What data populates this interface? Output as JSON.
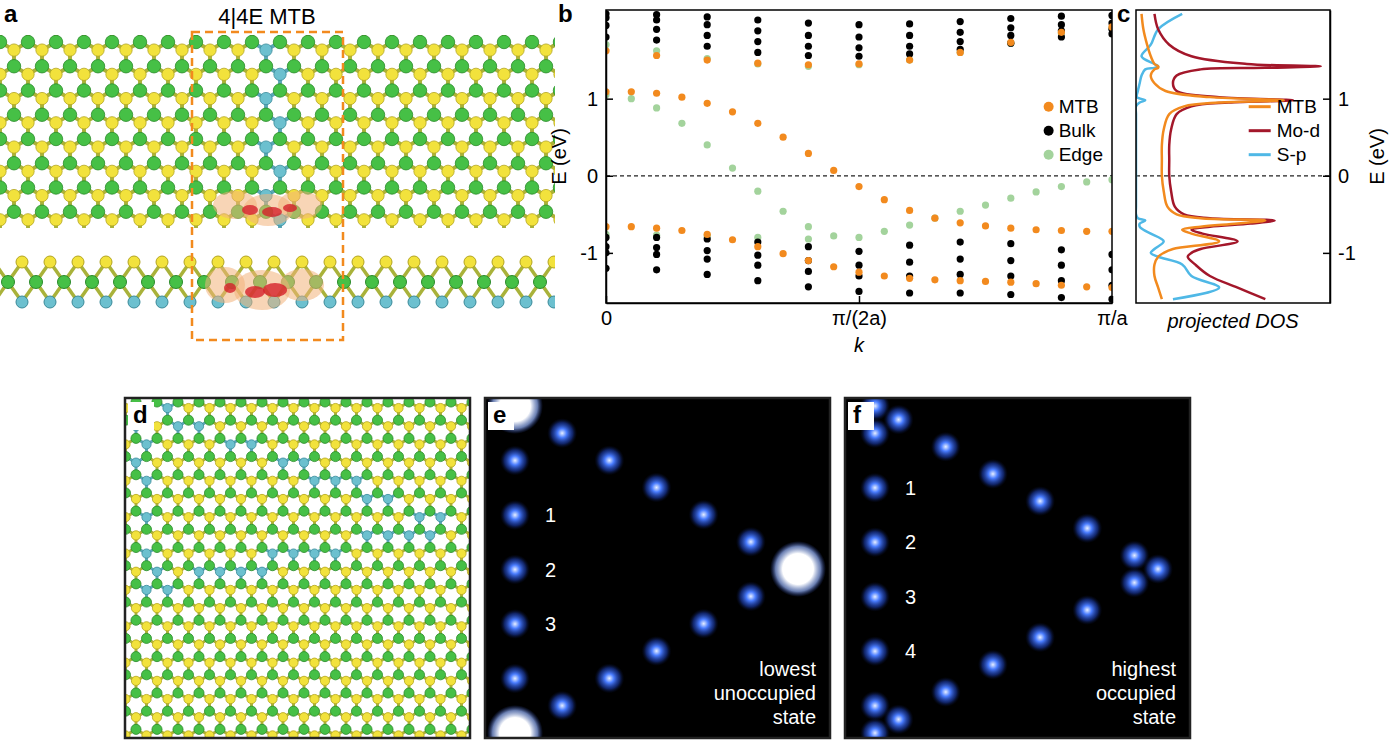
{
  "figure": {
    "panel_labels": [
      "a",
      "b",
      "c",
      "d",
      "e",
      "f"
    ],
    "a_title": "4|4E MTB",
    "e_sites": [
      "1",
      "2",
      "3"
    ],
    "e_caption": "lowest unoccupied state",
    "f_sites": [
      "1",
      "2",
      "3",
      "4"
    ],
    "f_caption": "highest occupied state"
  },
  "chart_data": [
    {
      "type": "scatter",
      "xlabel": "k",
      "ylabel": "E (eV)",
      "xlim": [
        0,
        1
      ],
      "xticks": [
        0,
        {
          "value": 0.5,
          "label": "π/(2a)"
        },
        {
          "value": 1,
          "label": "π/a"
        }
      ],
      "ylim": [
        -1.65,
        2.15
      ],
      "yticks": [
        -1,
        0,
        1
      ],
      "fermi_level": 0,
      "legend": "right",
      "series": [
        {
          "name": "MTB",
          "color": "#f28a1e",
          "marker": "circle",
          "x": [
            0,
            0.05,
            0.1,
            0.15,
            0.2,
            0.25,
            0.3,
            0.35,
            0.4,
            0.45,
            0.5,
            0.55,
            0.6,
            0.65,
            0.7,
            0.75,
            0.8,
            0.85,
            0.9,
            0.95,
            1,
            0,
            0.05,
            0.1,
            0.15,
            0.2,
            0.25,
            0.3,
            0.35,
            0.4,
            0.45,
            0.5,
            0.55,
            0.6,
            0.65,
            0.7,
            0.75,
            0.8,
            0.85,
            0.9,
            0.95,
            1,
            0,
            0.1,
            0.2,
            0.3,
            0.4,
            0.5,
            0.6,
            0.7,
            0.8,
            0.9,
            1
          ],
          "values": [
            1.09,
            1.09,
            1.07,
            1.02,
            0.94,
            0.83,
            0.68,
            0.5,
            0.29,
            0.07,
            -0.14,
            -0.31,
            -0.45,
            -0.55,
            -0.61,
            -0.65,
            -0.68,
            -0.7,
            -0.71,
            -0.72,
            -0.72,
            -0.66,
            -0.66,
            -0.68,
            -0.71,
            -0.76,
            -0.83,
            -0.92,
            -1.01,
            -1.1,
            -1.18,
            -1.25,
            -1.3,
            -1.33,
            -1.35,
            -1.36,
            -1.37,
            -1.38,
            -1.4,
            -1.42,
            -1.44,
            -1.45,
            1.62,
            1.56,
            1.5,
            1.46,
            1.44,
            1.45,
            1.5,
            1.6,
            1.73,
            1.86,
            1.93
          ]
        },
        {
          "name": "Bulk",
          "color": "#000000",
          "marker": "circle",
          "x": [
            0,
            0.1,
            0.2,
            0.3,
            0.4,
            0.5,
            0.6,
            0.7,
            0.8,
            0.9,
            1,
            0,
            0.1,
            0.2,
            0.3,
            0.4,
            0.5,
            0.6,
            0.7,
            0.8,
            0.9,
            1,
            0,
            0.1,
            0.2,
            0.3,
            0.4,
            0.5,
            0.6,
            0.7,
            0.8,
            0.9,
            1,
            0,
            0.1,
            0.2,
            0.3,
            0.4,
            0.5,
            0.6,
            0.7,
            0.8,
            0.9,
            1,
            0,
            0.1,
            0.2,
            0.3,
            0.4,
            0.5,
            0.6,
            0.7,
            0.8,
            0.9,
            1,
            0,
            0.1,
            0.2,
            0.3,
            0.4,
            0.5,
            0.6,
            0.7,
            0.8,
            0.9,
            1,
            0,
            0.1,
            0.2,
            0.3,
            0.4,
            0.5,
            0.6,
            0.7,
            0.8,
            0.9,
            1,
            0,
            0.1,
            0.2,
            0.3,
            0.4,
            0.5,
            0.6,
            0.7,
            0.8,
            0.9,
            1
          ],
          "values": [
            1.95,
            1.9,
            1.82,
            1.74,
            1.68,
            1.66,
            1.68,
            1.74,
            1.82,
            1.88,
            1.9,
            2.05,
            2.02,
            1.96,
            1.88,
            1.82,
            1.8,
            1.82,
            1.86,
            1.92,
            1.96,
            1.98,
            2.1,
            2.09,
            2.06,
            2.02,
            1.98,
            1.96,
            1.97,
            2,
            2.04,
            2.07,
            2.08,
            1.8,
            1.76,
            1.68,
            1.6,
            1.56,
            1.55,
            1.58,
            1.64,
            1.72,
            1.8,
            1.84,
            -0.8,
            -0.8,
            -0.82,
            -0.86,
            -0.92,
            -0.98,
            -0.9,
            -0.86,
            -0.88,
            -0.96,
            -1.02,
            -0.92,
            -0.93,
            -0.97,
            -1.03,
            -1.1,
            -1.16,
            -1.12,
            -1.08,
            -1.1,
            -1.16,
            -1.22,
            -1,
            -1.02,
            -1.08,
            -1.16,
            -1.24,
            -1.3,
            -1.3,
            -1.28,
            -1.3,
            -1.36,
            -1.42,
            -1.2,
            -1.22,
            -1.28,
            -1.36,
            -1.44,
            -1.5,
            -1.52,
            -1.52,
            -1.54,
            -1.58,
            -1.6
          ]
        },
        {
          "name": "Edge",
          "color": "#a3d39c",
          "marker": "circle",
          "x": [
            0,
            0.05,
            0.1,
            0.15,
            0.2,
            0.25,
            0.3,
            0.35,
            0.4,
            0.45,
            0,
            0.1,
            0.2,
            0.3,
            0.4,
            0.5,
            0.55,
            0.6,
            0.65,
            0.7,
            0.75,
            0.8,
            0.85,
            0.9,
            0.95,
            1,
            0,
            0.1,
            0.2,
            0.3,
            0.4,
            0.5,
            0.6,
            0.7,
            0.8,
            0.9,
            1
          ],
          "values": [
            1.05,
            1,
            0.88,
            0.68,
            0.4,
            0.1,
            -0.2,
            -0.46,
            -0.66,
            -0.78,
            -0.76,
            -0.77,
            -0.78,
            -0.8,
            -0.82,
            -0.8,
            -0.72,
            -0.64,
            -0.55,
            -0.46,
            -0.38,
            -0.29,
            -0.21,
            -0.14,
            -0.08,
            -0.05,
            1.7,
            1.62,
            1.52,
            1.45,
            1.42,
            1.44,
            1.5,
            1.6,
            1.72,
            1.85,
            1.92
          ]
        }
      ]
    },
    {
      "type": "line",
      "xlabel": "projected DOS",
      "ylabel": "E (eV)",
      "xlim": [
        0,
        1.05
      ],
      "ylim": [
        -1.65,
        2.15
      ],
      "yticks": [
        -1,
        0,
        1
      ],
      "tick_labels": "y",
      "fermi_level": 0,
      "legend": "right",
      "series": [
        {
          "name": "MTB",
          "color": "#f28a1e",
          "x": [
            0.03,
            0.04,
            0.06,
            0.08,
            0.1,
            0.12,
            0.12,
            0.1,
            0.08,
            0.1,
            0.16,
            0.4,
            0.8,
            0.45,
            0.26,
            0.18,
            0.15,
            0.14,
            0.14,
            0.14,
            0.15,
            0.17,
            0.22,
            0.35,
            0.7,
            0.55,
            0.35,
            0.25,
            0.3,
            0.45,
            0.2,
            0.15,
            0.12,
            0.1,
            0.1,
            0.12,
            0.14
          ],
          "values": [
            2.1,
            1.9,
            1.7,
            1.55,
            1.45,
            1.42,
            1.4,
            1.38,
            1.3,
            1.2,
            1.1,
            1.02,
            0.98,
            0.95,
            0.9,
            0.8,
            0.6,
            0.4,
            0.2,
            0,
            -0.2,
            -0.4,
            -0.5,
            -0.55,
            -0.58,
            -0.62,
            -0.66,
            -0.7,
            -0.75,
            -0.85,
            -0.95,
            -1,
            -1.05,
            -1.15,
            -1.3,
            -1.45,
            -1.6
          ]
        },
        {
          "name": "Mo-d",
          "color": "#a3172a",
          "x": [
            0.1,
            0.12,
            0.18,
            0.3,
            0.6,
            1,
            0.7,
            0.35,
            0.22,
            0.2,
            0.22,
            0.45,
            0.85,
            0.5,
            0.3,
            0.22,
            0.19,
            0.18,
            0.18,
            0.18,
            0.19,
            0.21,
            0.26,
            0.4,
            0.75,
            0.62,
            0.4,
            0.3,
            0.36,
            0.55,
            0.35,
            0.3,
            0.28,
            0.32,
            0.4,
            0.55,
            0.7
          ],
          "values": [
            2.1,
            1.9,
            1.7,
            1.55,
            1.45,
            1.42,
            1.4,
            1.38,
            1.3,
            1.2,
            1.1,
            1.02,
            0.98,
            0.95,
            0.9,
            0.8,
            0.6,
            0.4,
            0.2,
            0,
            -0.2,
            -0.4,
            -0.5,
            -0.55,
            -0.58,
            -0.62,
            -0.66,
            -0.7,
            -0.75,
            -0.85,
            -0.95,
            -1,
            -1.05,
            -1.15,
            -1.3,
            -1.45,
            -1.6
          ]
        },
        {
          "name": "S-p",
          "color": "#4fb8e6",
          "x": [
            0.25,
            0.12,
            0.08,
            0.03,
            0.1,
            0.12,
            0.1,
            0.05,
            0.03,
            0.02,
            0.01,
            0.005,
            0.05,
            0.02,
            0,
            0,
            0,
            0,
            0,
            0,
            0,
            0,
            0,
            0.01,
            0.05,
            0.02,
            0.02,
            0.04,
            0.08,
            0.15,
            0.1,
            0.08,
            0.12,
            0.25,
            0.3,
            0.45,
            0.2
          ],
          "values": [
            2.1,
            1.9,
            1.7,
            1.55,
            1.45,
            1.42,
            1.4,
            1.38,
            1.3,
            1.2,
            1.1,
            1.02,
            0.98,
            0.95,
            0.9,
            0.8,
            0.6,
            0.4,
            0.2,
            0,
            -0.2,
            -0.4,
            -0.5,
            -0.55,
            -0.58,
            -0.62,
            -0.66,
            -0.7,
            -0.75,
            -0.85,
            -0.95,
            -1,
            -1.05,
            -1.15,
            -1.3,
            -1.45,
            -1.6
          ]
        }
      ]
    }
  ]
}
